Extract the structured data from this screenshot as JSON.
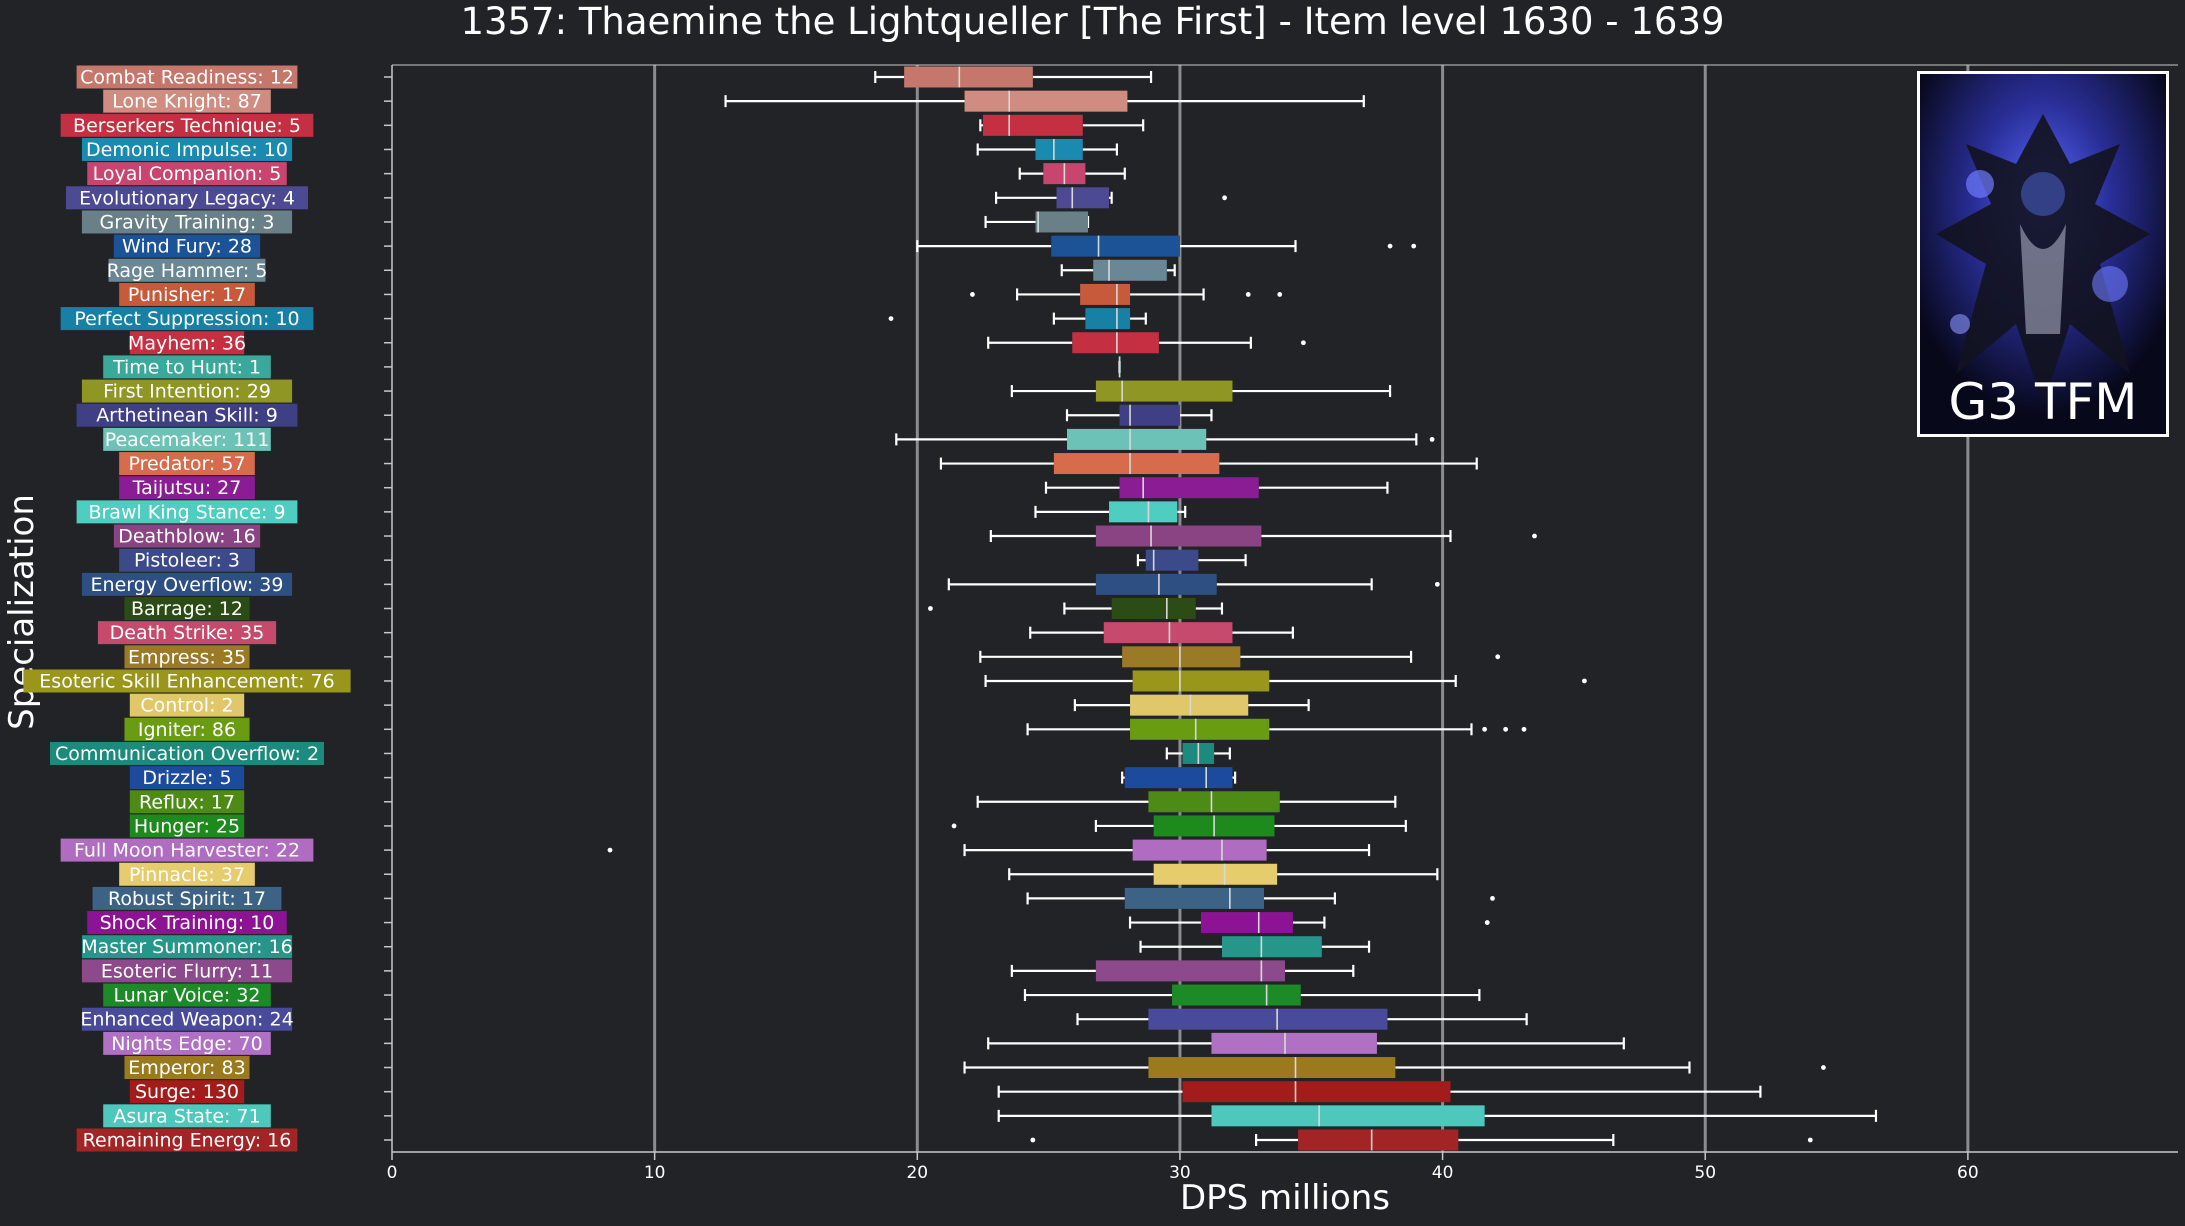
{
  "chart_data": {
    "type": "boxplot",
    "orientation": "horizontal",
    "title": "1357: Thaemine the Lightqueller [The First] - Item level 1630 - 1639",
    "xlabel": "DPS millions",
    "ylabel": "Specialization",
    "xlim": [
      0,
      68
    ],
    "xticks": [
      0,
      10,
      20,
      30,
      40,
      50,
      60
    ],
    "grid": "vertical major lines at 10-unit ticks",
    "image_caption": "G3 TFM",
    "series": [
      {
        "label": "Combat Readiness: 12",
        "color": "#c4776a",
        "whislo": 18.4,
        "q1": 19.5,
        "med": 21.6,
        "q3": 24.4,
        "whishi": 28.9,
        "fliers": []
      },
      {
        "label": "Lone Knight: 87",
        "color": "#d08c80",
        "whislo": 12.7,
        "q1": 21.8,
        "med": 23.5,
        "q3": 28.0,
        "whishi": 37.0,
        "fliers": []
      },
      {
        "label": "Berserkers Technique: 5",
        "color": "#c52f42",
        "whislo": 22.4,
        "q1": 22.5,
        "med": 23.5,
        "q3": 26.3,
        "whishi": 28.6,
        "fliers": []
      },
      {
        "label": "Demonic Impulse: 10",
        "color": "#1a8ab0",
        "whislo": 22.3,
        "q1": 24.5,
        "med": 25.2,
        "q3": 26.3,
        "whishi": 27.6,
        "fliers": []
      },
      {
        "label": "Loyal Companion: 5",
        "color": "#c84570",
        "whislo": 23.9,
        "q1": 24.8,
        "med": 25.6,
        "q3": 26.4,
        "whishi": 27.9,
        "fliers": []
      },
      {
        "label": "Evolutionary Legacy: 4",
        "color": "#4d4a94",
        "whislo": 23.0,
        "q1": 25.3,
        "med": 25.9,
        "q3": 27.3,
        "whishi": 27.4,
        "fliers": [
          31.7
        ]
      },
      {
        "label": "Gravity Training: 3",
        "color": "#6a8088",
        "whislo": 22.6,
        "q1": 24.5,
        "med": 24.6,
        "q3": 26.5,
        "whishi": 26.5,
        "fliers": []
      },
      {
        "label": "Wind Fury: 28",
        "color": "#1c5296",
        "whislo": 20.0,
        "q1": 25.1,
        "med": 26.9,
        "q3": 30.0,
        "whishi": 34.4,
        "fliers": [
          38.0,
          38.9
        ]
      },
      {
        "label": "Rage Hammer: 5",
        "color": "#6a8795",
        "whislo": 25.5,
        "q1": 26.7,
        "med": 27.3,
        "q3": 29.5,
        "whishi": 29.8,
        "fliers": []
      },
      {
        "label": "Punisher: 17",
        "color": "#c85a3c",
        "whislo": 23.8,
        "q1": 26.2,
        "med": 27.6,
        "q3": 28.1,
        "whishi": 30.9,
        "fliers": [
          22.1,
          32.6,
          33.8
        ]
      },
      {
        "label": "Perfect Suppression: 10",
        "color": "#1680a5",
        "whislo": 25.2,
        "q1": 26.4,
        "med": 27.6,
        "q3": 28.1,
        "whishi": 28.7,
        "fliers": [
          19.0
        ]
      },
      {
        "label": "Mayhem: 36",
        "color": "#c52f42",
        "whislo": 22.7,
        "q1": 25.9,
        "med": 27.6,
        "q3": 29.2,
        "whishi": 32.7,
        "fliers": [
          34.7
        ]
      },
      {
        "label": "Time to Hunt: 1",
        "color": "#3aa89a",
        "whislo": 27.7,
        "q1": 27.7,
        "med": 27.7,
        "q3": 27.7,
        "whishi": 27.7,
        "fliers": []
      },
      {
        "label": "First Intention: 29",
        "color": "#909624",
        "whislo": 23.6,
        "q1": 26.8,
        "med": 27.8,
        "q3": 32.0,
        "whishi": 38.0,
        "fliers": []
      },
      {
        "label": "Arthetinean Skill: 9",
        "color": "#3f3f85",
        "whislo": 25.7,
        "q1": 27.7,
        "med": 28.1,
        "q3": 30.0,
        "whishi": 31.2,
        "fliers": []
      },
      {
        "label": "Peacemaker: 111",
        "color": "#6cc2b6",
        "whislo": 19.2,
        "q1": 25.7,
        "med": 28.1,
        "q3": 31.0,
        "whishi": 39.0,
        "fliers": [
          39.6
        ]
      },
      {
        "label": "Predator: 57",
        "color": "#d66c4c",
        "whislo": 20.9,
        "q1": 25.2,
        "med": 28.1,
        "q3": 31.5,
        "whishi": 41.3,
        "fliers": []
      },
      {
        "label": "Taijutsu: 27",
        "color": "#8a1c94",
        "whislo": 24.9,
        "q1": 27.7,
        "med": 28.6,
        "q3": 33.0,
        "whishi": 37.9,
        "fliers": []
      },
      {
        "label": "Brawl King Stance: 9",
        "color": "#4ecdc0",
        "whislo": 24.5,
        "q1": 27.3,
        "med": 28.8,
        "q3": 29.9,
        "whishi": 30.2,
        "fliers": []
      },
      {
        "label": "Deathblow: 16",
        "color": "#8a4484",
        "whislo": 22.8,
        "q1": 26.8,
        "med": 28.9,
        "q3": 33.1,
        "whishi": 40.3,
        "fliers": [
          43.5
        ]
      },
      {
        "label": "Pistoleer: 3",
        "color": "#3d4a8a",
        "whislo": 28.4,
        "q1": 28.7,
        "med": 29.0,
        "q3": 30.7,
        "whishi": 32.5,
        "fliers": []
      },
      {
        "label": "Energy Overflow: 39",
        "color": "#2e4f82",
        "whislo": 21.2,
        "q1": 26.8,
        "med": 29.2,
        "q3": 31.4,
        "whishi": 37.3,
        "fliers": [
          39.8
        ]
      },
      {
        "label": "Barrage: 12",
        "color": "#2c4c16",
        "whislo": 25.6,
        "q1": 27.4,
        "med": 29.5,
        "q3": 30.6,
        "whishi": 31.6,
        "fliers": [
          20.5
        ]
      },
      {
        "label": "Death Strike: 35",
        "color": "#c64a6c",
        "whislo": 24.3,
        "q1": 27.1,
        "med": 29.6,
        "q3": 32.0,
        "whishi": 34.3,
        "fliers": []
      },
      {
        "label": "Empress: 35",
        "color": "#9a7a24",
        "whislo": 22.4,
        "q1": 27.8,
        "med": 30.0,
        "q3": 32.3,
        "whishi": 38.8,
        "fliers": [
          42.1
        ]
      },
      {
        "label": "Esoteric Skill Enhancement: 76",
        "color": "#9a961c",
        "whislo": 22.6,
        "q1": 28.2,
        "med": 30.0,
        "q3": 33.4,
        "whishi": 40.5,
        "fliers": [
          45.4
        ]
      },
      {
        "label": "Control: 2",
        "color": "#e0c86a",
        "whislo": 26.0,
        "q1": 28.1,
        "med": 30.4,
        "q3": 32.6,
        "whishi": 34.9,
        "fliers": []
      },
      {
        "label": "Igniter: 86",
        "color": "#6a9c12",
        "whislo": 24.2,
        "q1": 28.1,
        "med": 30.6,
        "q3": 33.4,
        "whishi": 41.1,
        "fliers": [
          41.6,
          42.4,
          43.1
        ]
      },
      {
        "label": "Communication Overflow: 2",
        "color": "#1c8a7c",
        "whislo": 29.5,
        "q1": 30.1,
        "med": 30.7,
        "q3": 31.3,
        "whishi": 31.9,
        "fliers": []
      },
      {
        "label": "Drizzle: 5",
        "color": "#1c4a9c",
        "whislo": 27.8,
        "q1": 27.9,
        "med": 31.0,
        "q3": 32.0,
        "whishi": 32.1,
        "fliers": []
      },
      {
        "label": "Reflux: 17",
        "color": "#4e8a16",
        "whislo": 22.3,
        "q1": 28.8,
        "med": 31.2,
        "q3": 33.8,
        "whishi": 38.2,
        "fliers": []
      },
      {
        "label": "Hunger: 25",
        "color": "#1e8a1e",
        "whislo": 26.8,
        "q1": 29.0,
        "med": 31.3,
        "q3": 33.6,
        "whishi": 38.6,
        "fliers": [
          21.4
        ]
      },
      {
        "label": "Full Moon Harvester: 22",
        "color": "#b06cc0",
        "whislo": 21.8,
        "q1": 28.2,
        "med": 31.6,
        "q3": 33.3,
        "whishi": 37.2,
        "fliers": [
          8.3
        ]
      },
      {
        "label": "Pinnacle: 37",
        "color": "#e6cc6c",
        "whislo": 23.5,
        "q1": 29.0,
        "med": 31.7,
        "q3": 33.7,
        "whishi": 39.8,
        "fliers": []
      },
      {
        "label": "Robust Spirit: 17",
        "color": "#3c6286",
        "whislo": 24.2,
        "q1": 27.9,
        "med": 31.9,
        "q3": 33.2,
        "whishi": 35.9,
        "fliers": [
          41.9
        ]
      },
      {
        "label": "Shock Training: 10",
        "color": "#8c1494",
        "whislo": 28.1,
        "q1": 30.8,
        "med": 33.0,
        "q3": 34.3,
        "whishi": 35.5,
        "fliers": [
          41.7
        ]
      },
      {
        "label": "Master Summoner: 16",
        "color": "#26968a",
        "whislo": 28.5,
        "q1": 31.6,
        "med": 33.1,
        "q3": 35.4,
        "whishi": 37.2,
        "fliers": []
      },
      {
        "label": "Esoteric Flurry: 11",
        "color": "#8c4a8c",
        "whislo": 23.6,
        "q1": 26.8,
        "med": 33.1,
        "q3": 34.0,
        "whishi": 36.6,
        "fliers": []
      },
      {
        "label": "Lunar Voice: 32",
        "color": "#1c8a26",
        "whislo": 24.1,
        "q1": 29.7,
        "med": 33.3,
        "q3": 34.6,
        "whishi": 41.4,
        "fliers": []
      },
      {
        "label": "Enhanced Weapon: 24",
        "color": "#4a4a9c",
        "whislo": 26.1,
        "q1": 28.8,
        "med": 33.7,
        "q3": 37.9,
        "whishi": 43.2,
        "fliers": []
      },
      {
        "label": "Nights Edge: 70",
        "color": "#b070c4",
        "whislo": 22.7,
        "q1": 31.2,
        "med": 34.0,
        "q3": 37.5,
        "whishi": 46.9,
        "fliers": []
      },
      {
        "label": "Emperor: 83",
        "color": "#9a7a1c",
        "whislo": 21.8,
        "q1": 28.8,
        "med": 34.4,
        "q3": 38.2,
        "whishi": 49.4,
        "fliers": [
          54.5
        ]
      },
      {
        "label": "Surge: 130",
        "color": "#a31c1c",
        "whislo": 23.1,
        "q1": 30.1,
        "med": 34.4,
        "q3": 40.3,
        "whishi": 52.1,
        "fliers": []
      },
      {
        "label": "Asura State: 71",
        "color": "#4ec8bc",
        "whislo": 23.1,
        "q1": 31.2,
        "med": 35.3,
        "q3": 41.6,
        "whishi": 56.5,
        "fliers": []
      },
      {
        "label": "Remaining Energy: 16",
        "color": "#a32424",
        "whislo": 32.9,
        "q1": 34.5,
        "med": 37.3,
        "q3": 40.6,
        "whishi": 46.5,
        "fliers": [
          24.4,
          54.0
        ]
      }
    ]
  }
}
